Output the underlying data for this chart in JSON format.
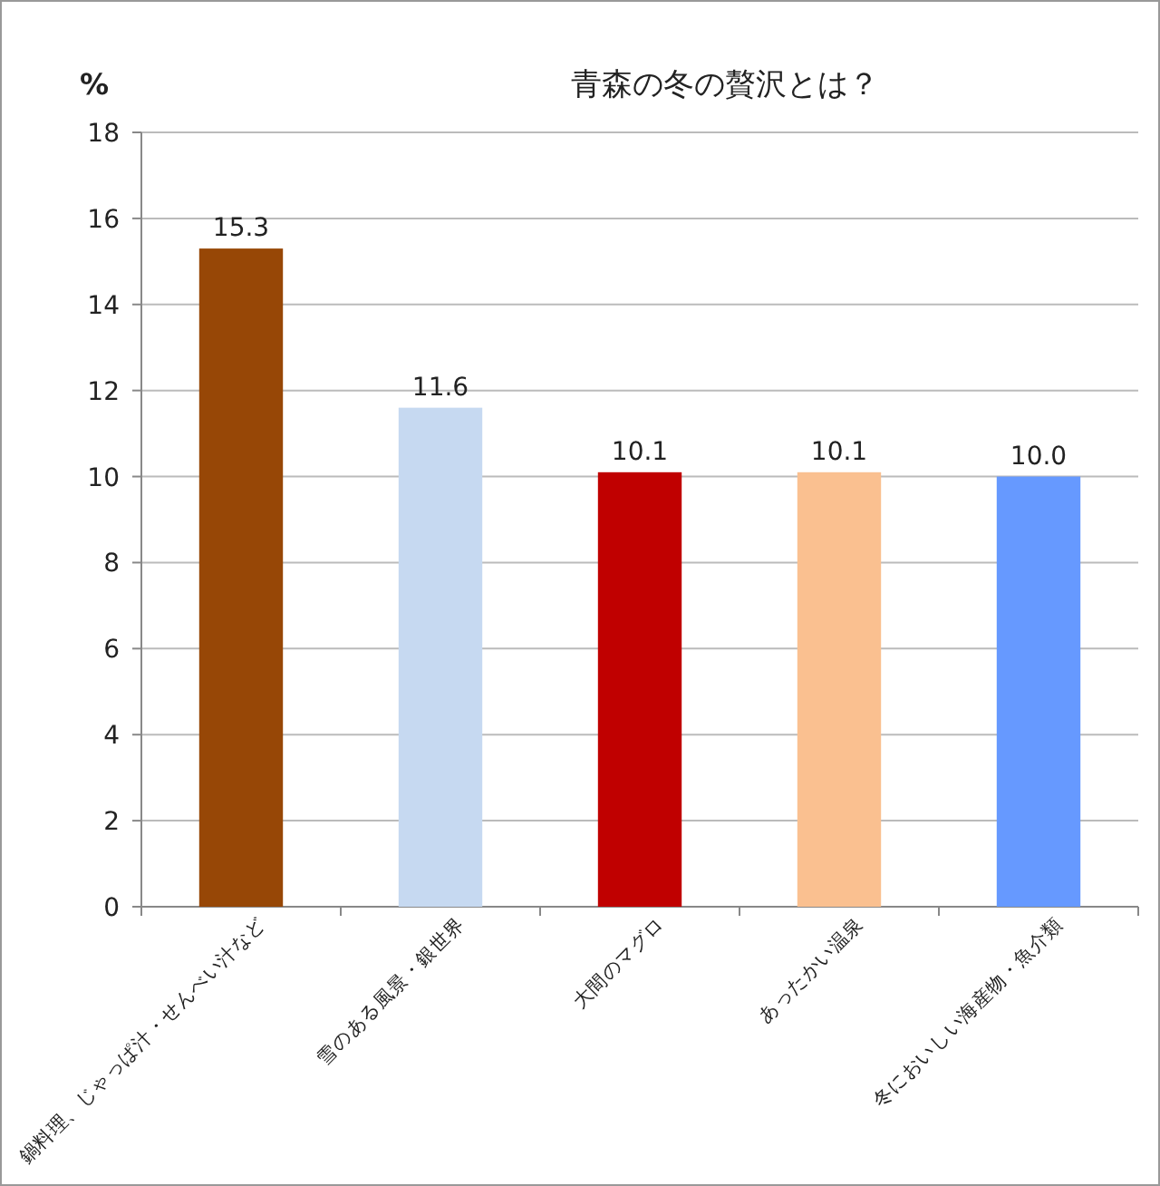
{
  "chart_data": {
    "type": "bar",
    "title": "青森の冬の贅沢とは？",
    "ylabel": "%",
    "categories": [
      "鍋料理、じゃっぱ汁・せんべい汁など",
      "雪のある風景・銀世界",
      "大間のマグロ",
      "あったかい温泉",
      "冬においしい海産物・魚介類"
    ],
    "values": [
      15.3,
      11.6,
      10.1,
      10.1,
      10.0
    ],
    "value_labels": [
      "15.3",
      "11.6",
      "10.1",
      "10.1",
      "10.0"
    ],
    "colors": [
      "#974706",
      "#c6d9f1",
      "#c00000",
      "#fac090",
      "#6699ff"
    ],
    "ylim": [
      0,
      18
    ],
    "yticks": [
      0,
      2,
      4,
      6,
      8,
      10,
      12,
      14,
      16,
      18
    ],
    "grid": "y"
  }
}
